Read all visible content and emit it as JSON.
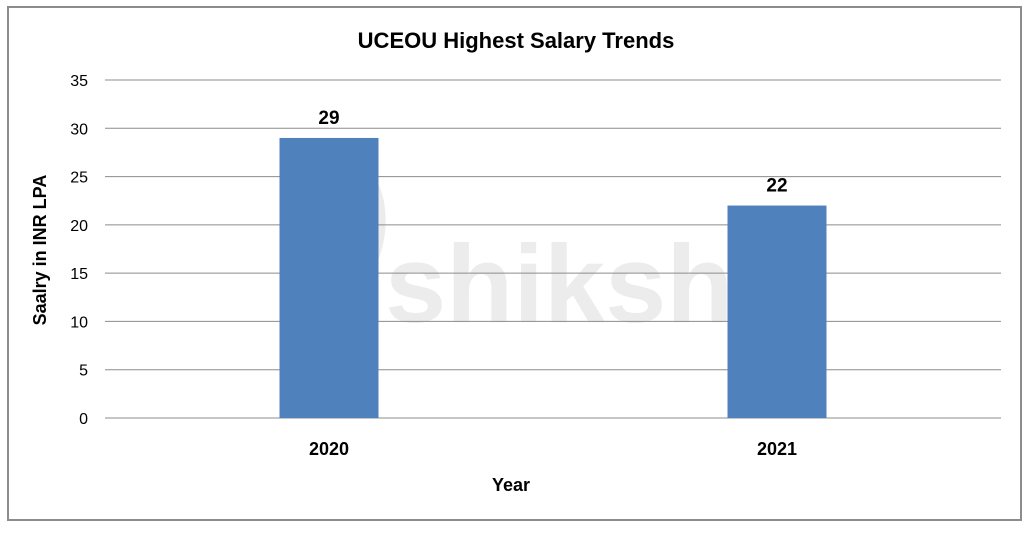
{
  "watermark": "shiksha",
  "chart_data": {
    "type": "bar",
    "title": "UCEOU Highest Salary Trends",
    "xlabel": "Year",
    "ylabel": "Saalry in INR LPA",
    "categories": [
      "2020",
      "2021"
    ],
    "values": [
      29,
      22
    ],
    "ylim": [
      0,
      35
    ],
    "yticks": [
      0,
      5,
      10,
      15,
      20,
      25,
      30,
      35
    ],
    "grid": true,
    "bar_color": "#4f81bd",
    "data_labels": true
  }
}
